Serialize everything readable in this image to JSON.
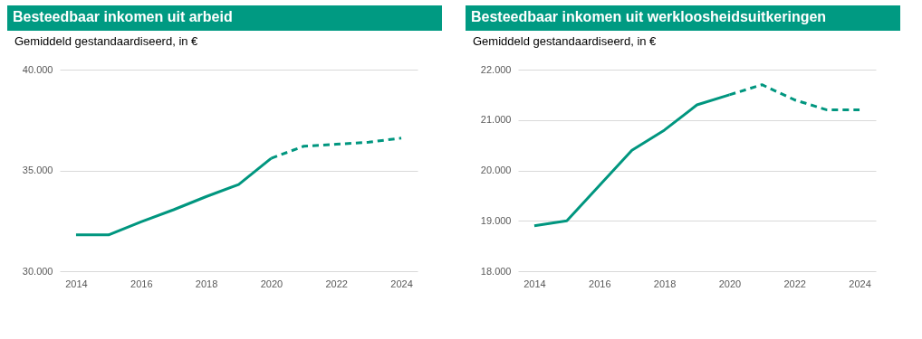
{
  "chart_data": [
    {
      "type": "line",
      "title": "Besteedbaar inkomen uit arbeid",
      "subtitle": "Gemiddeld gestandaardiseerd, in €",
      "xlim": [
        2013.5,
        2024.5
      ],
      "xticks": [
        2014,
        2016,
        2018,
        2020,
        2022,
        2024
      ],
      "ylim": [
        30000,
        40000
      ],
      "yticks": [
        {
          "value": 30000,
          "label": "30.000"
        },
        {
          "value": 35000,
          "label": "35.000"
        },
        {
          "value": 40000,
          "label": "40.000"
        }
      ],
      "grid": "y",
      "series": [
        {
          "color": "#00967f",
          "line_style": "solid",
          "x": [
            2014,
            2015,
            2016,
            2017,
            2018,
            2019,
            2020
          ],
          "values": [
            31800,
            31800,
            32450,
            33050,
            33700,
            34300,
            35600
          ]
        },
        {
          "color": "#00967f",
          "line_style": "dashed",
          "x": [
            2020,
            2021,
            2022,
            2023,
            2024
          ],
          "values": [
            35600,
            36200,
            36300,
            36400,
            36600
          ]
        }
      ]
    },
    {
      "type": "line",
      "title": "Besteedbaar inkomen uit werkloosheidsuitkeringen",
      "subtitle": "Gemiddeld gestandaardiseerd, in €",
      "xlim": [
        2013.5,
        2024.5
      ],
      "xticks": [
        2014,
        2016,
        2018,
        2020,
        2022,
        2024
      ],
      "ylim": [
        18000,
        22000
      ],
      "yticks": [
        {
          "value": 18000,
          "label": "18.000"
        },
        {
          "value": 19000,
          "label": "19.000"
        },
        {
          "value": 20000,
          "label": "20.000"
        },
        {
          "value": 21000,
          "label": "21.000"
        },
        {
          "value": 22000,
          "label": "22.000"
        }
      ],
      "grid": "y",
      "series": [
        {
          "color": "#00967f",
          "line_style": "solid",
          "x": [
            2014,
            2015,
            2016,
            2017,
            2018,
            2019,
            2020
          ],
          "values": [
            18900,
            19000,
            19700,
            20400,
            20800,
            21300,
            21500
          ]
        },
        {
          "color": "#00967f",
          "line_style": "dashed",
          "x": [
            2020,
            2021,
            2022,
            2023,
            2024
          ],
          "values": [
            21500,
            21700,
            21400,
            21200,
            21200
          ]
        }
      ]
    }
  ]
}
